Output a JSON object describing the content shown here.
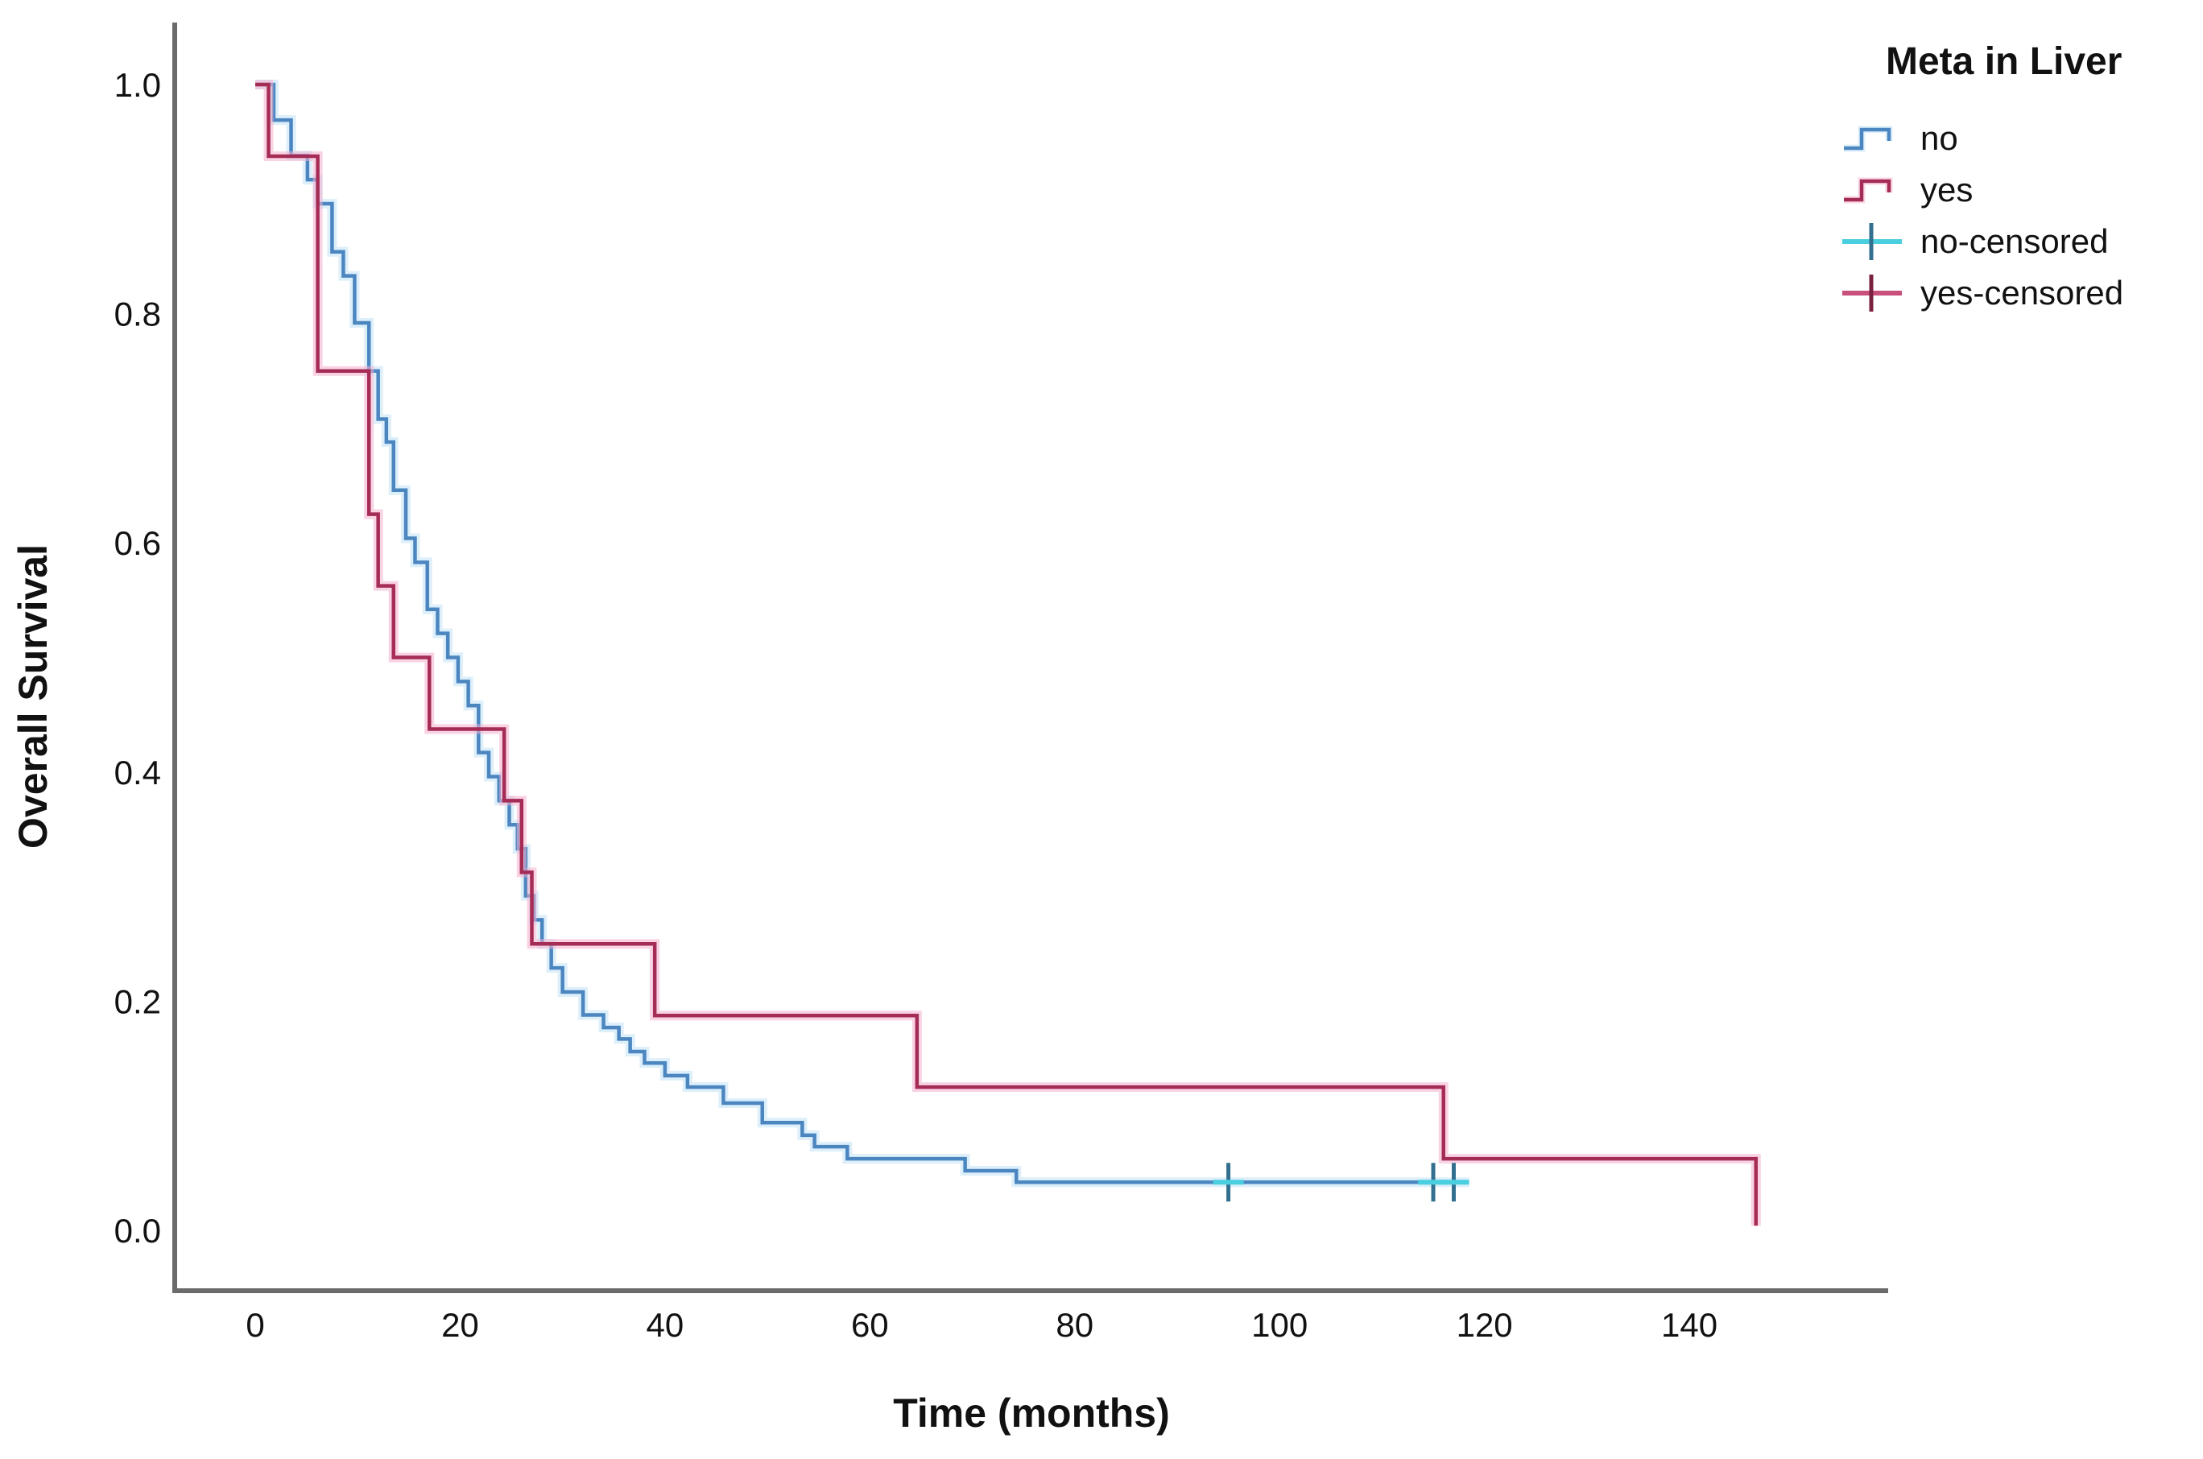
{
  "page": {
    "background": "#ffffff",
    "axis_color": "#6B6B6B",
    "text_color": "#111111"
  },
  "chart_data": {
    "type": "line",
    "subtype": "kaplan-meier-step",
    "title": "",
    "xlabel": "Time (months)",
    "ylabel": "Overall Survival",
    "x_ticks": [
      0,
      20,
      40,
      60,
      80,
      100,
      120,
      140
    ],
    "y_ticks": [
      "1.0",
      "0.8",
      "0.6",
      "0.4",
      "0.2",
      "0.0"
    ],
    "y_tick_values": [
      1.0,
      0.8,
      0.6,
      0.4,
      0.2,
      0.0
    ],
    "xlim": [
      0,
      155
    ],
    "ylim": [
      0,
      1
    ],
    "grid": false,
    "legend": {
      "title": "Meta in Liver",
      "position": "top-right",
      "entries": [
        {
          "label": "no",
          "type": "step-line",
          "color": "#4C86C0",
          "halo": "#BFE2F6",
          "tick_color": "#4C86C0"
        },
        {
          "label": "yes",
          "type": "step-line",
          "color": "#A52C55",
          "halo": "#F4AFCE",
          "tick_color": "#A52C55"
        },
        {
          "label": "no-censored",
          "type": "plus-marker",
          "color": "#49CFE0",
          "halo": "#BFF0F6",
          "tick_color": "#33708F"
        },
        {
          "label": "yes-censored",
          "type": "plus-marker",
          "color": "#C94F7C",
          "halo": "#F4AFCE",
          "tick_color": "#7A2040"
        }
      ]
    },
    "series": [
      {
        "name": "no",
        "role": "survival-curve",
        "color": "#4C86C0",
        "halo": "#BFE2F6",
        "end_time": 118.5,
        "steps": [
          [
            0,
            1.0
          ],
          [
            1.8,
            0.969
          ],
          [
            3.5,
            0.938
          ],
          [
            5.1,
            0.917
          ],
          [
            6.1,
            0.896
          ],
          [
            7.5,
            0.854
          ],
          [
            8.6,
            0.833
          ],
          [
            9.7,
            0.792
          ],
          [
            11.1,
            0.75
          ],
          [
            12,
            0.708
          ],
          [
            12.8,
            0.688
          ],
          [
            13.5,
            0.646
          ],
          [
            14.7,
            0.604
          ],
          [
            15.6,
            0.583
          ],
          [
            16.8,
            0.542
          ],
          [
            17.8,
            0.521
          ],
          [
            18.8,
            0.5
          ],
          [
            19.8,
            0.479
          ],
          [
            20.8,
            0.458
          ],
          [
            21.8,
            0.417
          ],
          [
            22.8,
            0.396
          ],
          [
            23.8,
            0.375
          ],
          [
            24.8,
            0.354
          ],
          [
            25.6,
            0.333
          ],
          [
            26.4,
            0.292
          ],
          [
            27.2,
            0.271
          ],
          [
            28,
            0.25
          ],
          [
            28.9,
            0.229
          ],
          [
            30,
            0.208
          ],
          [
            32,
            0.188
          ],
          [
            34,
            0.177
          ],
          [
            35.5,
            0.167
          ],
          [
            36.6,
            0.156
          ],
          [
            38,
            0.146
          ],
          [
            40,
            0.135
          ],
          [
            42.2,
            0.125
          ],
          [
            45.7,
            0.111
          ],
          [
            49.5,
            0.094
          ],
          [
            53.4,
            0.083
          ],
          [
            54.6,
            0.073
          ],
          [
            57.8,
            0.0625
          ],
          [
            69.3,
            0.052
          ],
          [
            74.3,
            0.042
          ]
        ]
      },
      {
        "name": "yes",
        "role": "survival-curve",
        "color": "#A52C55",
        "halo": "#F4AFCE",
        "end_time": 146.5,
        "steps": [
          [
            0,
            1.0
          ],
          [
            1.3,
            0.9375
          ],
          [
            6.1,
            0.75
          ],
          [
            11.1,
            0.625
          ],
          [
            12,
            0.5625
          ],
          [
            13.5,
            0.5
          ],
          [
            17,
            0.4375
          ],
          [
            24.3,
            0.375
          ],
          [
            26,
            0.3125
          ],
          [
            27,
            0.25
          ],
          [
            39,
            0.1875
          ],
          [
            64.6,
            0.125
          ],
          [
            116,
            0.0625
          ],
          [
            146.5,
            0.004
          ]
        ]
      },
      {
        "name": "no-censored",
        "role": "censor-marks",
        "color": "#49CFE0",
        "tick_color": "#33708F",
        "points": [
          [
            95,
            0.042
          ],
          [
            115,
            0.042
          ],
          [
            117,
            0.042
          ]
        ]
      },
      {
        "name": "yes-censored",
        "role": "censor-marks",
        "color": "#C94F7C",
        "tick_color": "#7A2040",
        "points": []
      }
    ]
  }
}
